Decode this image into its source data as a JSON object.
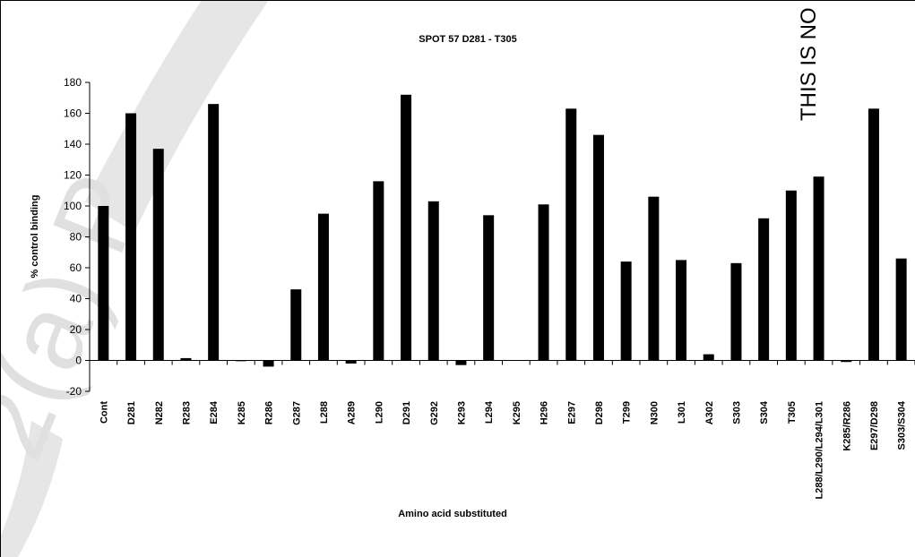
{
  "watermark": {
    "arc_text": "2(a) P",
    "vertical_text": "THIS IS NO"
  },
  "chart_data": {
    "type": "bar",
    "title": "SPOT 57 D281 - T305",
    "xlabel": "Amino acid substituted",
    "ylabel": "% control binding",
    "ylim": [
      -20,
      180
    ],
    "yticks": [
      -20,
      0,
      20,
      40,
      60,
      80,
      100,
      120,
      140,
      160,
      180
    ],
    "grid": false,
    "legend": "none",
    "bar_color": "#000000",
    "categories": [
      "Cont",
      "D281",
      "N282",
      "R283",
      "E284",
      "K285",
      "R286",
      "G287",
      "L288",
      "A289",
      "L290",
      "D291",
      "G292",
      "K293",
      "L294",
      "K295",
      "H296",
      "E297",
      "D298",
      "T299",
      "N300",
      "L301",
      "A302",
      "S303",
      "S304",
      "T305",
      "L288/L290/L294/L301",
      "K285/R286",
      "E297/D298",
      "S303/S304"
    ],
    "values": [
      100,
      160,
      137,
      1.5,
      166,
      -0.5,
      -4,
      46,
      95,
      -2,
      116,
      172,
      103,
      -3,
      94,
      0,
      101,
      163,
      146,
      64,
      106,
      65,
      4,
      63,
      92,
      110,
      119,
      -1,
      163,
      66
    ]
  }
}
